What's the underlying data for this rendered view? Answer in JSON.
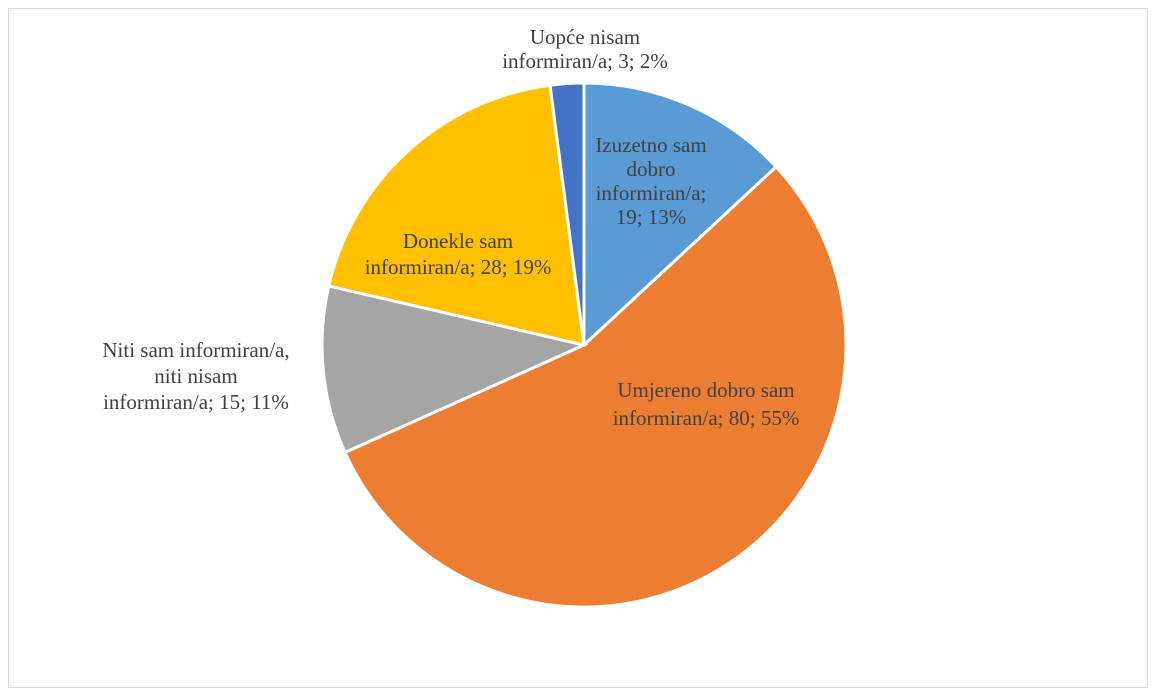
{
  "chart_data": {
    "type": "pie",
    "slices": [
      {
        "label_lines": [
          "Izuzetno sam",
          "dobro",
          "informiran/a;",
          "19; 13%"
        ],
        "category": "Izuzetno sam dobro informiran/a",
        "value": 19,
        "percent": 13,
        "color": "#5b9bd5"
      },
      {
        "label_lines": [
          "Umjereno dobro sam",
          "informiran/a; 80; 55%"
        ],
        "category": "Umjereno dobro sam informiran/a",
        "value": 80,
        "percent": 55,
        "color": "#ed7d31"
      },
      {
        "label_lines": [
          "Niti sam informiran/a,",
          "niti nisam",
          "informiran/a; 15; 11%"
        ],
        "category": "Niti sam informiran/a, niti nisam informiran/a",
        "value": 15,
        "percent": 11,
        "color": "#a5a5a5"
      },
      {
        "label_lines": [
          "Donekle sam",
          "informiran/a; 28; 19%"
        ],
        "category": "Donekle sam informiran/a",
        "value": 28,
        "percent": 19,
        "color": "#ffc000"
      },
      {
        "label_lines": [
          "Uopće nisam",
          "informiran/a; 3; 2%"
        ],
        "category": "Uopće nisam informiran/a",
        "value": 3,
        "percent": 2,
        "color": "#4472c4"
      }
    ]
  }
}
